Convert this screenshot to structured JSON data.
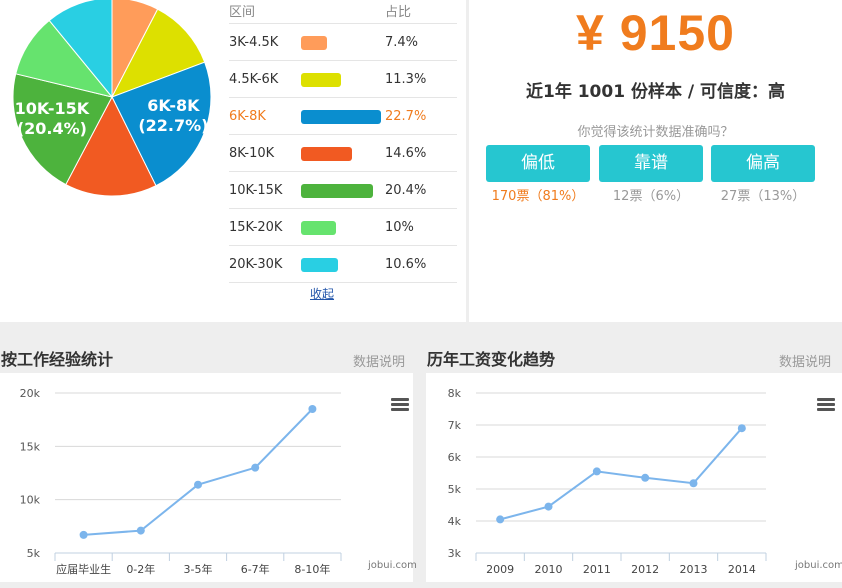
{
  "distribution": {
    "header_range": "区间",
    "header_share": "占比",
    "rows": [
      {
        "range": "3K-4.5K",
        "share": "7.4%",
        "value": 7.4,
        "color": "#ff9c5a",
        "pie_label": ""
      },
      {
        "range": "4.5K-6K",
        "share": "11.3%",
        "value": 11.3,
        "color": "#dde000",
        "pie_label": ""
      },
      {
        "range": "6K-8K",
        "share": "22.7%",
        "value": 22.7,
        "color": "#0a8ecf",
        "pie_label": "6K-8K",
        "pie_label_share": "(22.7%)"
      },
      {
        "range": "8K-10K",
        "share": "14.6%",
        "value": 14.6,
        "color": "#f15a22",
        "pie_label": ""
      },
      {
        "range": "10K-15K",
        "share": "20.4%",
        "value": 20.4,
        "color": "#4db33d",
        "pie_label": "10K-15K",
        "pie_label_share": "(20.4%)"
      },
      {
        "range": "15K-20K",
        "share": "10%",
        "value": 10,
        "color": "#66e36e",
        "pie_label": ""
      },
      {
        "range": "20K-30K",
        "share": "10.6%",
        "value": 10.6,
        "color": "#29cfe3",
        "pie_label": ""
      }
    ],
    "active_index": 2,
    "collapse_label": "收起"
  },
  "summary": {
    "salary": "¥ 9150",
    "sample_text": "近1年 1001 份样本 / 可信度：高",
    "question": "你觉得该统计数据准确吗？",
    "votes": [
      {
        "label": "偏低",
        "count": "170票（81%）",
        "highlight": true
      },
      {
        "label": "靠谱",
        "count": "12票（6%）",
        "highlight": false
      },
      {
        "label": "偏高",
        "count": "27票（13%）",
        "highlight": false
      }
    ]
  },
  "sections": {
    "experience_title": "按工作经验统计",
    "trend_title": "历年工资变化趋势",
    "explain_label": "数据说明"
  },
  "chart_data": [
    {
      "type": "line",
      "title": "",
      "categories": [
        "应届毕业生",
        "0-2年",
        "3-5年",
        "6-7年",
        "8-10年"
      ],
      "values": [
        6700,
        7100,
        11400,
        13000,
        18500
      ],
      "ylim": [
        5000,
        20000
      ],
      "yticks": [
        5000,
        10000,
        15000,
        20000
      ],
      "ytick_labels": [
        "5k",
        "10k",
        "15k",
        "20k"
      ],
      "grid": true,
      "color": "#7cb5ec",
      "credit": "jobui.com"
    },
    {
      "type": "line",
      "title": "",
      "categories": [
        "2009",
        "2010",
        "2011",
        "2012",
        "2013",
        "2014"
      ],
      "values": [
        4050,
        4450,
        5550,
        5350,
        5180,
        6900
      ],
      "ylim": [
        3000,
        8000
      ],
      "yticks": [
        3000,
        4000,
        5000,
        6000,
        7000,
        8000
      ],
      "ytick_labels": [
        "3k",
        "4k",
        "5k",
        "6k",
        "7k",
        "8k"
      ],
      "grid": true,
      "color": "#7cb5ec",
      "credit": "jobui.com"
    }
  ]
}
